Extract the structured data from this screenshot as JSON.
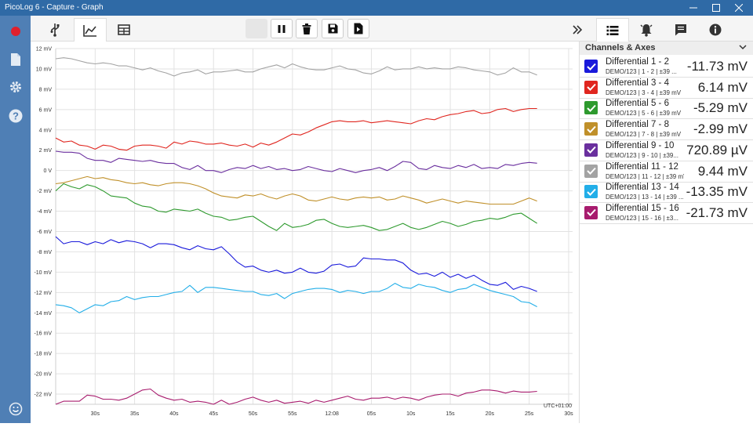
{
  "window": {
    "title": "PicoLog 6 - Capture - Graph"
  },
  "panel": {
    "title": "Channels & Axes",
    "channels": [
      {
        "name": "Differential 1 - 2",
        "desc": "DEMO/123 | 1 - 2 | ±39 ...",
        "value": "-11.73 mV",
        "color": "#1a1adb"
      },
      {
        "name": "Differential 3 - 4",
        "desc": "DEMO/123 | 3 - 4 | ±39 mV",
        "value": "6.14 mV",
        "color": "#e0261f"
      },
      {
        "name": "Differential 5 - 6",
        "desc": "DEMO/123 | 5 - 6 | ±39 mV",
        "value": "-5.29 mV",
        "color": "#2e9a2e"
      },
      {
        "name": "Differential 7 - 8",
        "desc": "DEMO/123 | 7 - 8 | ±39 mV",
        "value": "-2.99 mV",
        "color": "#c0902a"
      },
      {
        "name": "Differential 9 - 10",
        "desc": "DEMO/123 | 9 - 10 | ±39...",
        "value": "720.89 µV",
        "color": "#6a2f9e"
      },
      {
        "name": "Differential 11 - 12",
        "desc": "DEMO/123 | 11 - 12 | ±39 mV",
        "value": "9.44 mV",
        "color": "#a3a3a3"
      },
      {
        "name": "Differential 13 - 14",
        "desc": "DEMO/123 | 13 - 14 | ±39 ...",
        "value": "-13.35 mV",
        "color": "#22aee8"
      },
      {
        "name": "Differential 15 - 16",
        "desc": "DEMO/123 | 15 - 16 | ±3...",
        "value": "-21.73 mV",
        "color": "#a81c6e"
      }
    ]
  },
  "chart_data": {
    "type": "line",
    "ylim": [
      -23,
      12
    ],
    "yticks": [
      "12 mV",
      "10 mV",
      "8 mV",
      "6 mV",
      "4 mV",
      "2 mV",
      "0 V",
      "-2 mV",
      "-4 mV",
      "-6 mV",
      "-8 mV",
      "-10 mV",
      "-12 mV",
      "-14 mV",
      "-16 mV",
      "-18 mV",
      "-20 mV",
      "-22 mV"
    ],
    "ytick_values": [
      12,
      10,
      8,
      6,
      4,
      2,
      0,
      -2,
      -4,
      -6,
      -8,
      -10,
      -12,
      -14,
      -16,
      -18,
      -20,
      -22
    ],
    "xticks": [
      "30s",
      "35s",
      "40s",
      "45s",
      "50s",
      "55s",
      "12:08",
      "05s",
      "10s",
      "15s",
      "20s",
      "25s",
      "30s"
    ],
    "xtick_values": [
      30,
      35,
      40,
      45,
      50,
      55,
      60,
      65,
      70,
      75,
      80,
      85,
      90
    ],
    "xlim": [
      25,
      90.5
    ],
    "timezone_label": "UTC+01:00",
    "x": [
      25,
      26,
      27,
      28,
      29,
      30,
      31,
      32,
      33,
      34,
      35,
      36,
      37,
      38,
      39,
      40,
      41,
      42,
      43,
      44,
      45,
      46,
      47,
      48,
      49,
      50,
      51,
      52,
      53,
      54,
      55,
      56,
      57,
      58,
      59,
      60,
      61,
      62,
      63,
      64,
      65,
      66,
      67,
      68,
      69,
      70,
      71,
      72,
      73,
      74,
      75,
      76,
      77,
      78,
      79,
      80,
      81,
      82,
      83,
      84,
      85,
      86
    ],
    "series": [
      {
        "name": "Differential 1 - 2",
        "color": "#1a1adb",
        "values": [
          -6.5,
          -7.2,
          -7.0,
          -7.0,
          -7.3,
          -7.0,
          -7.2,
          -6.8,
          -7.1,
          -6.9,
          -7.0,
          -7.2,
          -7.6,
          -7.2,
          -7.2,
          -7.3,
          -7.6,
          -7.8,
          -7.4,
          -7.7,
          -7.8,
          -7.5,
          -8.2,
          -9.0,
          -9.5,
          -9.4,
          -9.8,
          -10.0,
          -9.8,
          -10.1,
          -10.0,
          -9.6,
          -10.0,
          -10.1,
          -9.9,
          -9.3,
          -9.2,
          -9.5,
          -9.4,
          -8.6,
          -8.7,
          -8.7,
          -8.8,
          -8.8,
          -9.1,
          -9.8,
          -10.2,
          -10.1,
          -10.4,
          -10.0,
          -10.5,
          -10.2,
          -10.6,
          -10.3,
          -10.8,
          -11.2,
          -11.3,
          -11.0,
          -11.7,
          -11.4,
          -11.6,
          -11.9
        ]
      },
      {
        "name": "Differential 3 - 4",
        "color": "#e0261f",
        "values": [
          3.2,
          2.8,
          2.9,
          2.5,
          2.4,
          2.1,
          2.5,
          2.4,
          2.1,
          2.0,
          2.4,
          2.5,
          2.5,
          2.4,
          2.2,
          2.8,
          2.6,
          2.9,
          2.8,
          2.6,
          2.6,
          2.7,
          2.5,
          2.4,
          2.6,
          2.3,
          2.7,
          2.5,
          2.8,
          3.2,
          3.6,
          3.5,
          3.8,
          4.2,
          4.5,
          4.8,
          4.9,
          4.8,
          4.8,
          4.9,
          4.7,
          4.8,
          4.9,
          4.8,
          4.7,
          4.6,
          4.9,
          5.1,
          5.0,
          5.3,
          5.5,
          5.6,
          5.8,
          5.9,
          5.6,
          5.7,
          6.0,
          6.1,
          5.8,
          6.0,
          6.1,
          6.1
        ]
      },
      {
        "name": "Differential 5 - 6",
        "color": "#2e9a2e",
        "values": [
          -2.0,
          -1.3,
          -1.6,
          -1.8,
          -1.4,
          -1.6,
          -2.0,
          -2.5,
          -2.6,
          -2.7,
          -3.2,
          -3.5,
          -3.6,
          -4.0,
          -4.1,
          -3.8,
          -3.9,
          -4.0,
          -3.8,
          -4.2,
          -4.5,
          -4.6,
          -4.9,
          -4.8,
          -4.6,
          -4.5,
          -5.0,
          -5.5,
          -5.9,
          -5.2,
          -5.6,
          -5.5,
          -5.3,
          -4.9,
          -4.8,
          -5.2,
          -5.5,
          -5.6,
          -5.5,
          -5.4,
          -5.6,
          -5.9,
          -5.8,
          -5.5,
          -5.2,
          -5.6,
          -5.8,
          -5.6,
          -5.3,
          -5.0,
          -5.2,
          -5.5,
          -5.3,
          -5.0,
          -4.9,
          -4.7,
          -4.8,
          -4.6,
          -4.3,
          -4.2,
          -4.7,
          -5.2
        ]
      },
      {
        "name": "Differential 7 - 8",
        "color": "#c0902a",
        "values": [
          -1.3,
          -1.2,
          -1.0,
          -0.8,
          -0.6,
          -0.8,
          -0.7,
          -0.9,
          -1.0,
          -1.2,
          -1.3,
          -1.2,
          -1.4,
          -1.5,
          -1.3,
          -1.2,
          -1.2,
          -1.3,
          -1.5,
          -1.8,
          -2.2,
          -2.5,
          -2.6,
          -2.7,
          -2.4,
          -2.5,
          -2.3,
          -2.6,
          -2.8,
          -2.5,
          -2.3,
          -2.5,
          -2.9,
          -3.0,
          -2.8,
          -2.6,
          -2.8,
          -2.9,
          -2.7,
          -2.6,
          -2.7,
          -2.6,
          -2.9,
          -2.8,
          -2.5,
          -2.7,
          -2.9,
          -3.2,
          -3.0,
          -2.8,
          -3.0,
          -3.2,
          -3.0,
          -3.1,
          -3.2,
          -3.3,
          -3.3,
          -3.3,
          -3.3,
          -3.0,
          -2.7,
          -3.0
        ]
      },
      {
        "name": "Differential 9 - 10",
        "color": "#6a2f9e",
        "values": [
          1.9,
          1.8,
          1.8,
          1.7,
          1.2,
          1.0,
          1.0,
          0.8,
          1.2,
          1.1,
          1.0,
          0.9,
          1.0,
          0.8,
          0.7,
          0.7,
          0.3,
          0.1,
          0.5,
          0.0,
          0.0,
          -0.2,
          0.1,
          0.3,
          0.2,
          0.5,
          0.2,
          0.4,
          0.1,
          0.2,
          0.0,
          0.1,
          0.4,
          0.2,
          0.0,
          -0.1,
          0.2,
          0.0,
          -0.2,
          0.0,
          0.1,
          0.3,
          0.0,
          0.4,
          0.9,
          0.8,
          0.2,
          0.1,
          0.5,
          0.3,
          0.2,
          0.5,
          0.3,
          0.6,
          0.2,
          0.3,
          0.2,
          0.6,
          0.5,
          0.7,
          0.8,
          0.72
        ]
      },
      {
        "name": "Differential 11 - 12",
        "color": "#a3a3a3",
        "values": [
          11.0,
          11.1,
          11.0,
          10.8,
          10.6,
          10.5,
          10.6,
          10.5,
          10.3,
          10.3,
          10.1,
          9.9,
          10.1,
          9.8,
          9.6,
          9.3,
          9.6,
          9.7,
          9.9,
          9.5,
          9.7,
          9.7,
          9.8,
          9.9,
          9.7,
          9.7,
          10.0,
          10.2,
          10.4,
          10.1,
          10.5,
          10.2,
          10.0,
          9.9,
          9.9,
          10.1,
          10.3,
          10.0,
          9.9,
          9.6,
          9.5,
          9.8,
          10.2,
          9.9,
          10.0,
          10.0,
          10.2,
          10.0,
          10.1,
          10.0,
          10.0,
          10.2,
          10.1,
          9.9,
          9.8,
          9.7,
          9.4,
          9.6,
          10.1,
          9.7,
          9.7,
          9.4
        ]
      },
      {
        "name": "Differential 13 - 14",
        "color": "#22aee8",
        "values": [
          -13.2,
          -13.3,
          -13.5,
          -14.0,
          -13.6,
          -13.2,
          -13.3,
          -12.9,
          -12.8,
          -12.4,
          -12.7,
          -12.5,
          -12.4,
          -12.4,
          -12.2,
          -12.0,
          -11.9,
          -11.3,
          -12.0,
          -11.5,
          -11.5,
          -11.6,
          -11.7,
          -11.8,
          -11.9,
          -11.9,
          -12.2,
          -12.3,
          -12.1,
          -12.6,
          -12.1,
          -11.9,
          -11.7,
          -11.6,
          -11.6,
          -11.7,
          -12.0,
          -11.8,
          -11.9,
          -12.1,
          -11.9,
          -11.9,
          -11.6,
          -11.1,
          -11.5,
          -11.6,
          -11.2,
          -11.4,
          -11.5,
          -11.8,
          -12.0,
          -11.7,
          -11.6,
          -11.2,
          -11.5,
          -11.8,
          -12.0,
          -12.2,
          -12.4,
          -12.9,
          -13.0,
          -13.4
        ]
      },
      {
        "name": "Differential 15 - 16",
        "color": "#a81c6e",
        "values": [
          -23.0,
          -22.7,
          -22.7,
          -22.7,
          -22.1,
          -22.2,
          -22.5,
          -22.5,
          -22.6,
          -22.4,
          -22.0,
          -21.6,
          -21.5,
          -22.1,
          -22.4,
          -22.6,
          -22.5,
          -22.8,
          -22.7,
          -22.8,
          -23.0,
          -22.6,
          -23.0,
          -22.8,
          -22.5,
          -22.3,
          -22.6,
          -22.8,
          -22.6,
          -22.9,
          -22.8,
          -22.7,
          -22.9,
          -22.6,
          -22.8,
          -22.6,
          -22.4,
          -22.2,
          -22.5,
          -22.6,
          -22.4,
          -22.4,
          -22.3,
          -22.5,
          -22.3,
          -22.4,
          -22.6,
          -22.3,
          -22.1,
          -22.0,
          -22.0,
          -22.2,
          -21.9,
          -21.8,
          -21.6,
          -21.6,
          -21.7,
          -21.9,
          -21.7,
          -21.8,
          -21.8,
          -21.73
        ]
      }
    ]
  }
}
